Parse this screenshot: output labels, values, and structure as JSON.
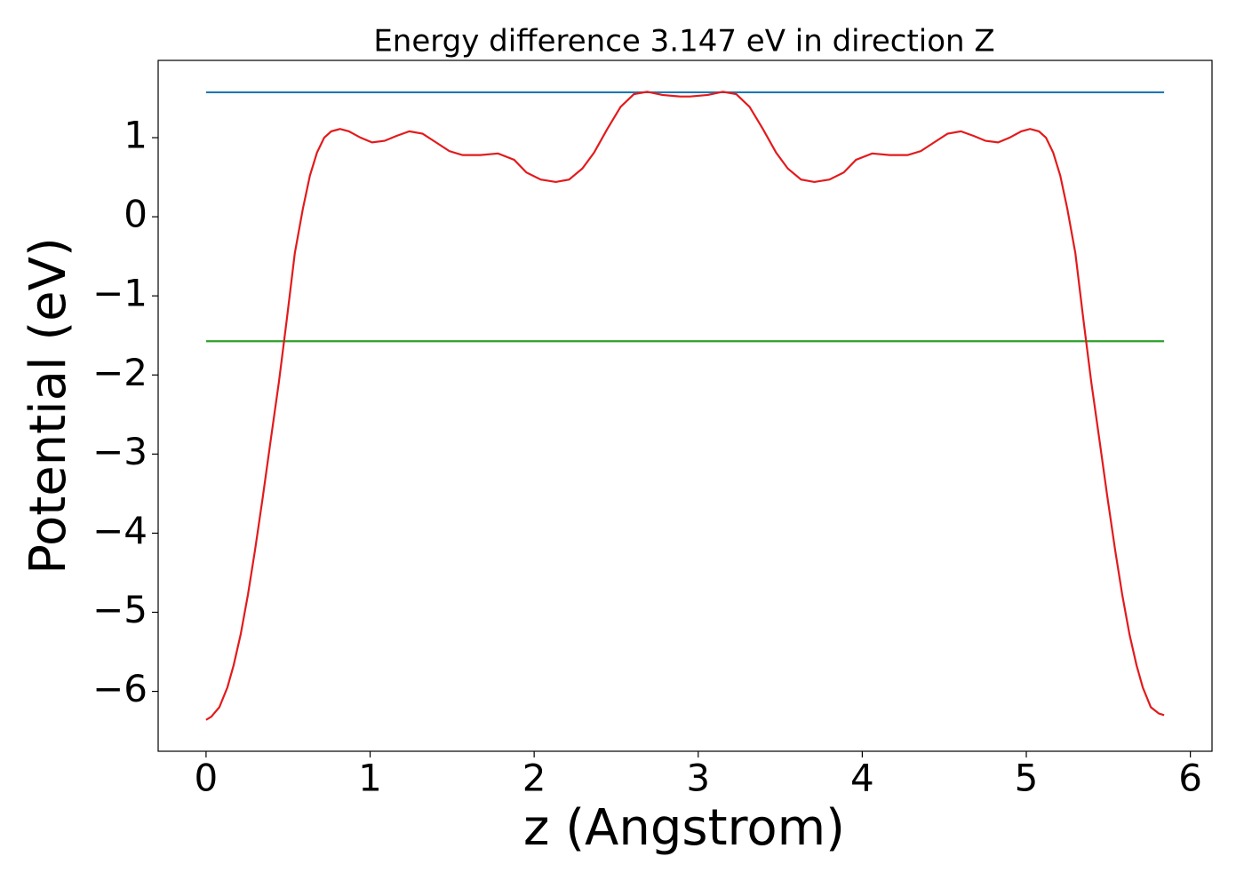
{
  "chart_data": {
    "type": "line",
    "title": "Energy difference 3.147 eV in direction Z",
    "xlabel": "z (Angstrom)",
    "ylabel": "Potential (eV)",
    "xlim": [
      -0.292,
      6.132
    ],
    "ylim": [
      -6.757,
      1.977
    ],
    "xticks": [
      0,
      1,
      2,
      3,
      4,
      5,
      6
    ],
    "yticks": [
      {
        "value": -6,
        "label": "−6"
      },
      {
        "value": -5,
        "label": "−5"
      },
      {
        "value": -4,
        "label": "−4"
      },
      {
        "value": -3,
        "label": "−3"
      },
      {
        "value": -2,
        "label": "−2"
      },
      {
        "value": -1,
        "label": "−1"
      },
      0,
      1
    ],
    "series": [
      {
        "color": "#1f77b4",
        "x": [
          0,
          5.84
        ],
        "values": [
          1.5735,
          1.5735
        ]
      },
      {
        "color": "#2ca02c",
        "x": [
          0,
          5.84
        ],
        "values": [
          -1.5735,
          -1.5735
        ]
      },
      {
        "color": "#e31a1c",
        "x": [
          0,
          0.032,
          0.081,
          0.13,
          0.168,
          0.211,
          0.255,
          0.298,
          0.346,
          0.395,
          0.444,
          0.492,
          0.541,
          0.59,
          0.633,
          0.676,
          0.72,
          0.763,
          0.817,
          0.871,
          0.942,
          1.012,
          1.088,
          1.158,
          1.239,
          1.32,
          1.402,
          1.483,
          1.564,
          1.672,
          1.78,
          1.878,
          1.953,
          2.04,
          2.132,
          2.213,
          2.294,
          2.365,
          2.446,
          2.527,
          2.608,
          2.689,
          2.781,
          2.89,
          2.95,
          3.059,
          3.151,
          3.232,
          3.313,
          3.394,
          3.475,
          3.546,
          3.627,
          3.708,
          3.8,
          3.887,
          3.962,
          4.06,
          4.168,
          4.276,
          4.357,
          4.438,
          4.52,
          4.601,
          4.682,
          4.752,
          4.828,
          4.898,
          4.969,
          5.023,
          5.077,
          5.12,
          5.164,
          5.207,
          5.25,
          5.299,
          5.348,
          5.396,
          5.445,
          5.494,
          5.542,
          5.585,
          5.629,
          5.672,
          5.71,
          5.759,
          5.808,
          5.84
        ],
        "values": [
          -6.36,
          -6.32,
          -6.2,
          -5.95,
          -5.67,
          -5.28,
          -4.78,
          -4.22,
          -3.54,
          -2.81,
          -2.09,
          -1.3,
          -0.46,
          0.1,
          0.52,
          0.81,
          1.0,
          1.08,
          1.11,
          1.08,
          1.0,
          0.94,
          0.96,
          1.02,
          1.08,
          1.05,
          0.94,
          0.83,
          0.78,
          0.78,
          0.8,
          0.72,
          0.56,
          0.47,
          0.44,
          0.47,
          0.61,
          0.81,
          1.11,
          1.39,
          1.55,
          1.58,
          1.54,
          1.52,
          1.52,
          1.54,
          1.58,
          1.55,
          1.39,
          1.11,
          0.81,
          0.61,
          0.47,
          0.44,
          0.47,
          0.56,
          0.72,
          0.8,
          0.78,
          0.78,
          0.83,
          0.94,
          1.05,
          1.08,
          1.02,
          0.96,
          0.94,
          1.0,
          1.08,
          1.11,
          1.08,
          1.0,
          0.81,
          0.52,
          0.1,
          -0.46,
          -1.3,
          -2.09,
          -2.81,
          -3.54,
          -4.22,
          -4.78,
          -5.28,
          -5.67,
          -5.95,
          -6.2,
          -6.28,
          -6.3
        ]
      }
    ]
  }
}
